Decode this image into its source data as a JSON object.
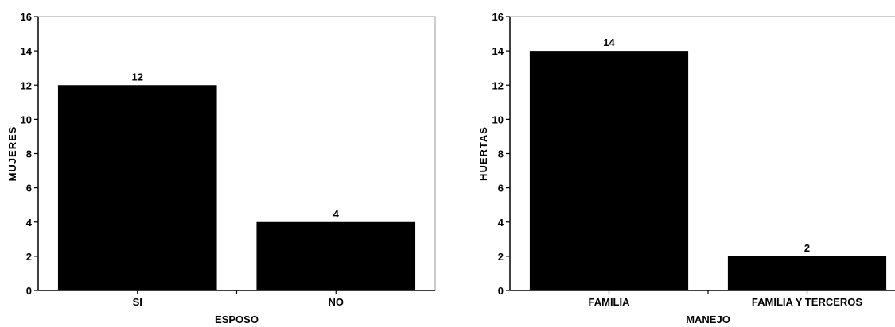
{
  "chart_data": [
    {
      "type": "bar",
      "title": "",
      "xlabel": "ESPOSO",
      "ylabel": "MUJERES",
      "categories": [
        "SI",
        "NO"
      ],
      "values": [
        12,
        4
      ],
      "data_labels": [
        "12",
        "4"
      ],
      "ylim": [
        0,
        16
      ],
      "yticks": [
        "0",
        "2",
        "4",
        "6",
        "8",
        "10",
        "12",
        "14",
        "16"
      ],
      "bar_color": "#000000",
      "grid": false,
      "legend": "none"
    },
    {
      "type": "bar",
      "title": "",
      "xlabel": "MANEJO",
      "ylabel": "HUERTAS",
      "categories": [
        "FAMILIA",
        "FAMILIA Y TERCEROS"
      ],
      "values": [
        14,
        2
      ],
      "data_labels": [
        "14",
        "2"
      ],
      "ylim": [
        0,
        16
      ],
      "yticks": [
        "0",
        "2",
        "4",
        "6",
        "8",
        "10",
        "12",
        "14",
        "16"
      ],
      "bar_color": "#000000",
      "grid": false,
      "legend": "none"
    }
  ]
}
